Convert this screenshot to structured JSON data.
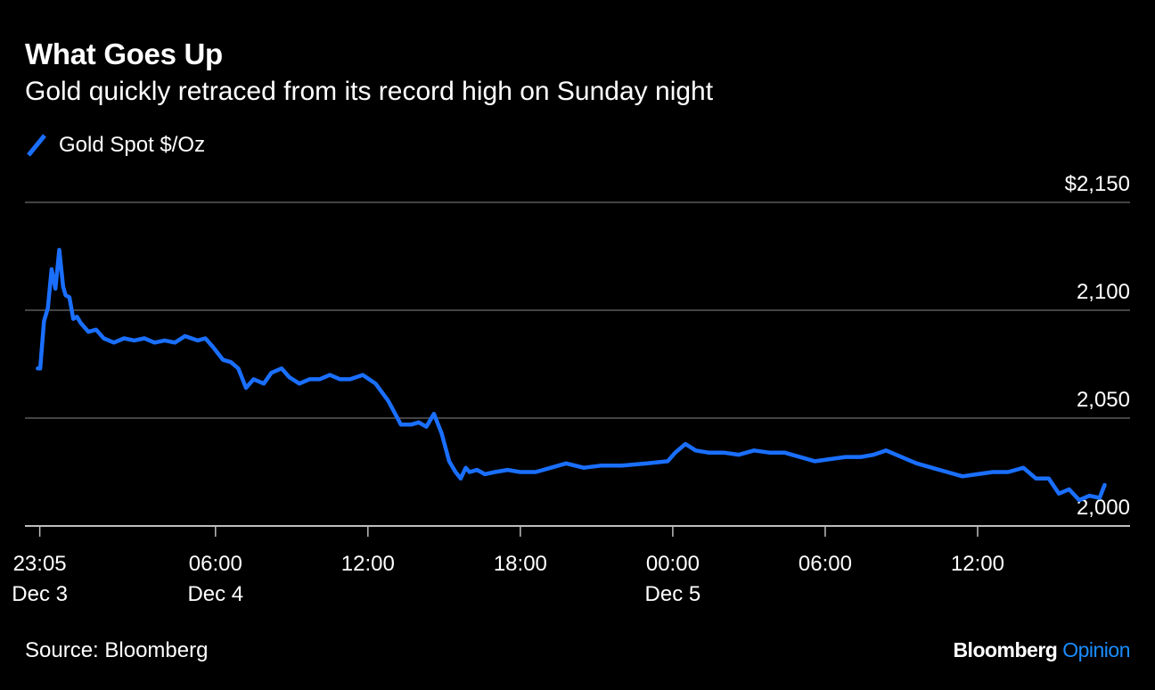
{
  "header": {
    "title": "What Goes Up",
    "subtitle": "Gold quickly retraced from its record high on Sunday night"
  },
  "footer": {
    "source": "Source: Bloomberg",
    "brand_main": "Bloomberg",
    "brand_accent": "Opinion"
  },
  "colors": {
    "background": "#000000",
    "line": "#1a6fff",
    "grid": "#5a5a5a",
    "text": "#ffffff",
    "brand_accent": "#1a8cff"
  },
  "chart_data": {
    "type": "line",
    "title": "What Goes Up",
    "subtitle": "Gold quickly retraced from its record high on Sunday night",
    "xlabel": "",
    "ylabel": "",
    "ylim": [
      2000,
      2150
    ],
    "y_axis_side": "right",
    "y_ticks": [
      {
        "value": 2150,
        "label": "$2,150"
      },
      {
        "value": 2100,
        "label": "2,100"
      },
      {
        "value": 2050,
        "label": "2,050"
      },
      {
        "value": 2000,
        "label": "2,000"
      }
    ],
    "x_range_hours_from_dec4_0000": [
      -1.5,
      42.0
    ],
    "x_ticks": [
      {
        "hour": -0.917,
        "label": "23:05",
        "sublabel": "Dec 3"
      },
      {
        "hour": 6,
        "label": "06:00",
        "sublabel": "Dec 4"
      },
      {
        "hour": 12,
        "label": "12:00",
        "sublabel": ""
      },
      {
        "hour": 18,
        "label": "18:00",
        "sublabel": ""
      },
      {
        "hour": 24,
        "label": "00:00",
        "sublabel": "Dec 5"
      },
      {
        "hour": 30,
        "label": "06:00",
        "sublabel": ""
      },
      {
        "hour": 36,
        "label": "12:00",
        "sublabel": ""
      }
    ],
    "grid": true,
    "legend_position": "top-left",
    "series": [
      {
        "name": "Gold Spot $/Oz",
        "x": [
          -1.0,
          -0.9,
          -0.75,
          -0.6,
          -0.45,
          -0.3,
          -0.15,
          0.0,
          0.1,
          0.25,
          0.4,
          0.55,
          0.7,
          0.85,
          1.0,
          1.3,
          1.6,
          2.0,
          2.4,
          2.8,
          3.2,
          3.6,
          4.0,
          4.4,
          4.8,
          5.3,
          5.6,
          5.9,
          6.3,
          6.6,
          6.9,
          7.2,
          7.5,
          7.9,
          8.2,
          8.6,
          8.9,
          9.3,
          9.7,
          10.1,
          10.5,
          10.9,
          11.3,
          11.8,
          12.3,
          12.8,
          13.3,
          13.7,
          14.0,
          14.3,
          14.6,
          14.9,
          15.2,
          15.45,
          15.65,
          15.85,
          16.0,
          16.3,
          16.6,
          17.0,
          17.5,
          18.0,
          18.6,
          19.2,
          19.8,
          20.5,
          21.2,
          22.0,
          23.0,
          23.8,
          24.1,
          24.5,
          24.9,
          25.4,
          26.0,
          26.6,
          27.2,
          27.8,
          28.4,
          29.0,
          29.6,
          30.2,
          30.8,
          31.4,
          31.9,
          32.4,
          33.0,
          33.6,
          34.2,
          34.8,
          35.4,
          36.0,
          36.6,
          37.2,
          37.8,
          38.3,
          38.8,
          39.2,
          39.6,
          40.0,
          40.4,
          40.8,
          41.0
        ],
        "y": [
          2073,
          2073,
          2095,
          2101,
          2119,
          2110,
          2128,
          2111,
          2107,
          2106,
          2096,
          2097,
          2094,
          2092,
          2090,
          2091,
          2087,
          2085,
          2087,
          2086,
          2087,
          2085,
          2086,
          2085,
          2088,
          2086,
          2087,
          2083,
          2077,
          2076,
          2073,
          2064,
          2068,
          2066,
          2071,
          2073,
          2069,
          2066,
          2068,
          2068,
          2070,
          2068,
          2068,
          2070,
          2066,
          2058,
          2047,
          2047,
          2048,
          2046,
          2052,
          2043,
          2030,
          2025,
          2022,
          2027,
          2025,
          2026,
          2024,
          2025,
          2026,
          2025,
          2025,
          2027,
          2029,
          2027,
          2028,
          2028,
          2029,
          2030,
          2034,
          2038,
          2035,
          2034,
          2034,
          2033,
          2035,
          2034,
          2034,
          2032,
          2030,
          2031,
          2032,
          2032,
          2033,
          2035,
          2032,
          2029,
          2027,
          2025,
          2023,
          2024,
          2025,
          2025,
          2027,
          2022,
          2022,
          2015,
          2017,
          2012,
          2014,
          2013,
          2019
        ]
      }
    ]
  }
}
